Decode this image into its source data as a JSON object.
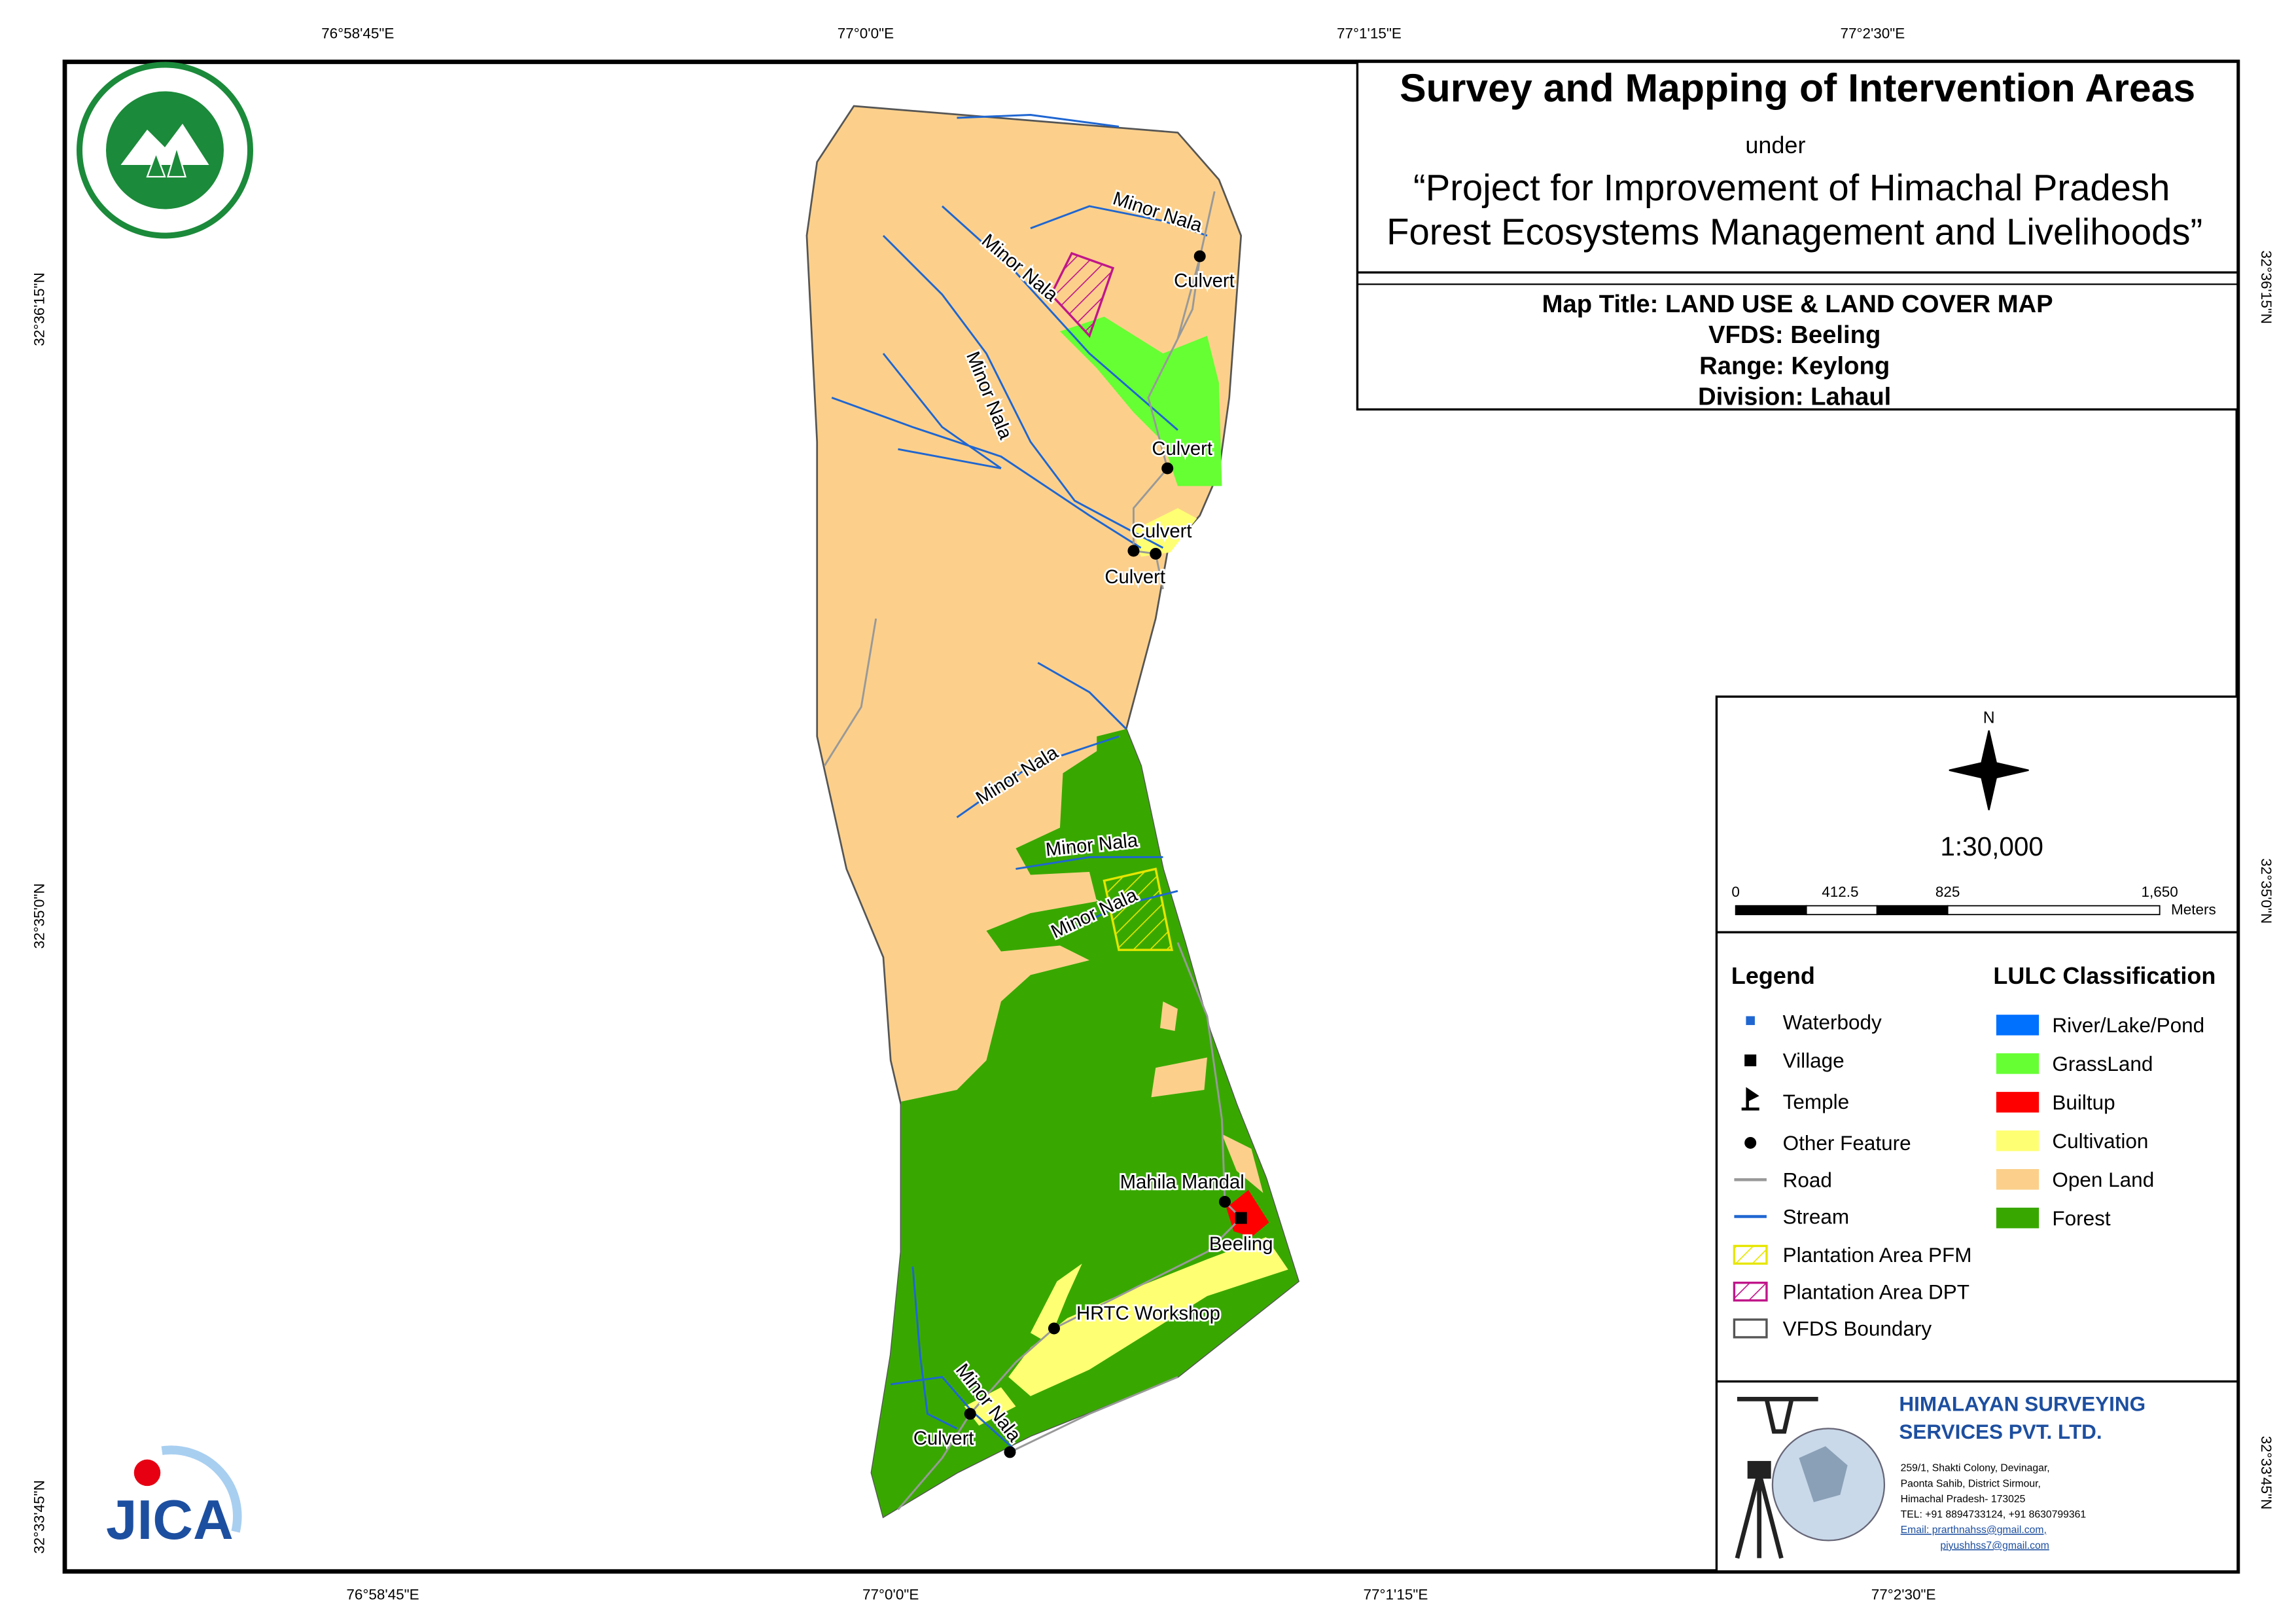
{
  "header": {
    "title": "Survey and Mapping of Intervention Areas",
    "under": "under",
    "project_line1": "“Project for Improvement of Himachal Pradesh",
    "project_line2": "Forest Ecosystems Management and Livelihoods”"
  },
  "map_info": {
    "map_title": "Map Title: LAND USE & LAND COVER MAP",
    "vfds": "VFDS: Beeling",
    "range": "Range: Keylong",
    "division": "Division: Lahaul"
  },
  "graticule": {
    "top": [
      "76°58'45\"E",
      "77°0'0\"E",
      "77°1'15\"E",
      "77°2'30\"E"
    ],
    "bottom": [
      "76°58'45\"E",
      "77°0'0\"E",
      "77°1'15\"E",
      "77°2'30\"E"
    ],
    "left": [
      "32°36'15\"N",
      "32°35'0\"N",
      "32°33'45\"N"
    ],
    "right": [
      "32°36'15\"N",
      "32°35'0\"N",
      "32°33'45\"N"
    ]
  },
  "scale": {
    "north": "N",
    "ratio": "1:30,000",
    "ticks": [
      "0",
      "412.5",
      "825",
      "1,650"
    ],
    "unit": "Meters"
  },
  "legend": {
    "title": "Legend",
    "items": [
      "Waterbody",
      "Village",
      "Temple",
      "Other Feature",
      "Road",
      "Stream",
      "Plantation Area PFM",
      "Plantation Area DPT",
      "VFDS Boundary"
    ]
  },
  "lulc": {
    "title": "LULC Classification",
    "items": [
      {
        "label": "River/Lake/Pond",
        "color": "#0070ff"
      },
      {
        "label": "GrassLand",
        "color": "#66ff33"
      },
      {
        "label": "Builtup",
        "color": "#ff0000"
      },
      {
        "label": "Cultivation",
        "color": "#ffff73"
      },
      {
        "label": "Open Land",
        "color": "#fcd08b"
      },
      {
        "label": "Forest",
        "color": "#38a800"
      }
    ]
  },
  "map_labels": [
    "Minor Nala",
    "Minor Nala",
    "Minor Nala",
    "Culvert",
    "Culvert",
    "Culvert",
    "Culvert",
    "Minor Nala",
    "Minor Nala",
    "Minor Nala",
    "Mahila Mandal",
    "Beeling",
    "HRTC Workshop",
    "Minor Nala",
    "Culvert"
  ],
  "company": {
    "name_line1": "HIMALAYAN SURVEYING",
    "name_line2": "SERVICES PVT. LTD.",
    "address": [
      "259/1, Shakti Colony, Devinagar,",
      "Paonta Sahib, District Sirmour,",
      "Himachal Pradesh- 173025",
      "TEL: +91 8894733124, +91 8630799361",
      "Email: prarthnahss@gmail.com,",
      "piyushhss7@gmail.com"
    ]
  },
  "logo": {
    "jica": "JICA"
  }
}
